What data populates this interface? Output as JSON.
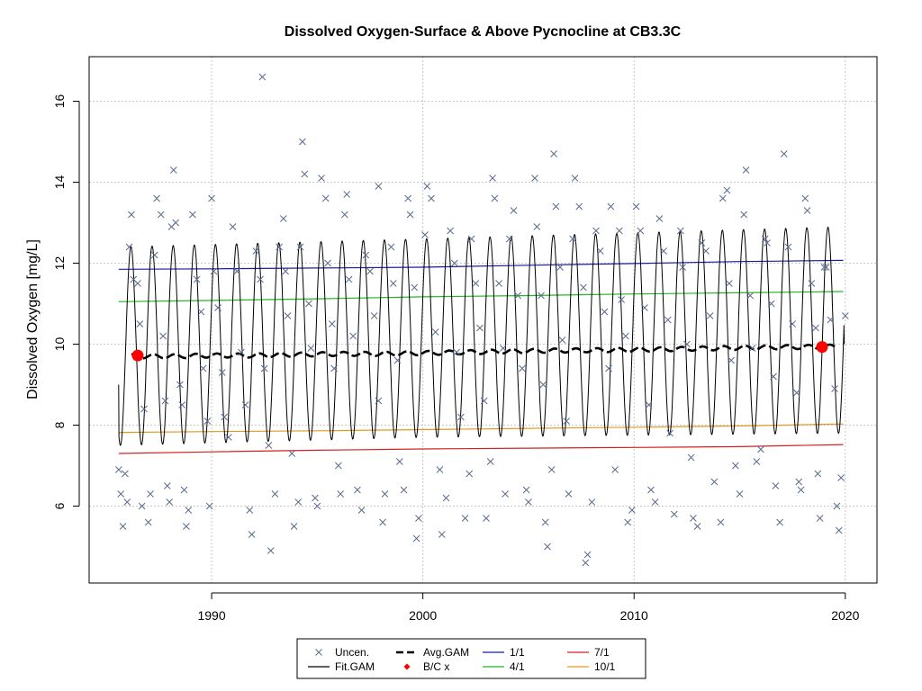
{
  "chart_data": {
    "type": "scatter",
    "title": "Dissolved Oxygen-Surface & Above Pycnocline at CB3.3C",
    "xlabel": "",
    "ylabel": "Dissolved Oxygen [mg/L]",
    "xlim": [
      1984.2,
      2021.5
    ],
    "ylim": [
      4.1,
      17.1
    ],
    "x_ticks": [
      1990,
      2000,
      2010,
      2020
    ],
    "y_ticks": [
      6,
      8,
      10,
      12,
      14,
      16
    ],
    "grid": true,
    "legend_position": "bottom-center",
    "series": [
      {
        "name": "Uncen.",
        "kind": "points",
        "marker": "x",
        "color": "#5a6b8c",
        "points": [
          [
            1985.6,
            6.9
          ],
          [
            1985.7,
            6.3
          ],
          [
            1985.8,
            5.5
          ],
          [
            1985.9,
            6.8
          ],
          [
            1986.0,
            6.1
          ],
          [
            1986.1,
            12.4
          ],
          [
            1986.2,
            13.2
          ],
          [
            1986.3,
            11.6
          ],
          [
            1986.5,
            11.5
          ],
          [
            1986.6,
            10.5
          ],
          [
            1986.7,
            6.0
          ],
          [
            1986.8,
            8.4
          ],
          [
            1987.0,
            5.6
          ],
          [
            1987.1,
            6.3
          ],
          [
            1987.3,
            12.2
          ],
          [
            1987.4,
            13.6
          ],
          [
            1987.6,
            13.2
          ],
          [
            1987.7,
            10.2
          ],
          [
            1987.8,
            8.6
          ],
          [
            1987.9,
            6.5
          ],
          [
            1988.0,
            6.1
          ],
          [
            1988.1,
            12.9
          ],
          [
            1988.2,
            14.3
          ],
          [
            1988.3,
            13.0
          ],
          [
            1988.5,
            9.0
          ],
          [
            1988.6,
            8.5
          ],
          [
            1988.7,
            6.4
          ],
          [
            1988.8,
            5.5
          ],
          [
            1988.9,
            5.9
          ],
          [
            1989.1,
            13.2
          ],
          [
            1989.3,
            11.6
          ],
          [
            1989.5,
            10.8
          ],
          [
            1989.6,
            9.4
          ],
          [
            1989.8,
            8.1
          ],
          [
            1989.9,
            6.0
          ],
          [
            1990.0,
            13.6
          ],
          [
            1990.1,
            11.8
          ],
          [
            1990.3,
            10.9
          ],
          [
            1990.5,
            9.3
          ],
          [
            1990.6,
            8.2
          ],
          [
            1990.8,
            7.7
          ],
          [
            1991.0,
            12.9
          ],
          [
            1991.2,
            11.8
          ],
          [
            1991.4,
            9.8
          ],
          [
            1991.6,
            8.5
          ],
          [
            1991.8,
            5.9
          ],
          [
            1991.9,
            5.3
          ],
          [
            1992.1,
            12.3
          ],
          [
            1992.3,
            11.6
          ],
          [
            1992.4,
            16.6
          ],
          [
            1992.5,
            9.4
          ],
          [
            1992.7,
            7.5
          ],
          [
            1992.8,
            4.9
          ],
          [
            1993.0,
            6.3
          ],
          [
            1993.2,
            12.4
          ],
          [
            1993.4,
            13.1
          ],
          [
            1993.5,
            11.8
          ],
          [
            1993.6,
            10.7
          ],
          [
            1993.8,
            7.3
          ],
          [
            1993.9,
            5.5
          ],
          [
            1994.1,
            6.1
          ],
          [
            1994.2,
            12.4
          ],
          [
            1994.3,
            15.0
          ],
          [
            1994.4,
            14.2
          ],
          [
            1994.6,
            11.0
          ],
          [
            1994.7,
            9.9
          ],
          [
            1994.9,
            6.2
          ],
          [
            1995.0,
            6.0
          ],
          [
            1995.2,
            14.1
          ],
          [
            1995.4,
            13.6
          ],
          [
            1995.5,
            12.0
          ],
          [
            1995.7,
            10.5
          ],
          [
            1995.8,
            9.4
          ],
          [
            1996.0,
            7.0
          ],
          [
            1996.1,
            6.3
          ],
          [
            1996.3,
            13.2
          ],
          [
            1996.4,
            13.7
          ],
          [
            1996.5,
            11.6
          ],
          [
            1996.7,
            10.2
          ],
          [
            1996.9,
            6.4
          ],
          [
            1997.1,
            5.9
          ],
          [
            1997.3,
            12.2
          ],
          [
            1997.5,
            11.8
          ],
          [
            1997.7,
            10.7
          ],
          [
            1997.9,
            8.6
          ],
          [
            1997.9,
            13.9
          ],
          [
            1998.1,
            5.6
          ],
          [
            1998.2,
            6.3
          ],
          [
            1998.5,
            12.4
          ],
          [
            1998.6,
            11.5
          ],
          [
            1998.8,
            9.6
          ],
          [
            1998.9,
            7.1
          ],
          [
            1999.1,
            6.4
          ],
          [
            1999.3,
            13.6
          ],
          [
            1999.4,
            13.2
          ],
          [
            1999.6,
            11.4
          ],
          [
            1999.7,
            5.2
          ],
          [
            1999.8,
            5.7
          ],
          [
            2000.1,
            12.7
          ],
          [
            2000.2,
            13.9
          ],
          [
            2000.4,
            13.6
          ],
          [
            2000.6,
            10.3
          ],
          [
            2000.8,
            6.9
          ],
          [
            2000.9,
            5.3
          ],
          [
            2001.1,
            6.2
          ],
          [
            2001.3,
            12.8
          ],
          [
            2001.5,
            12.0
          ],
          [
            2001.6,
            9.8
          ],
          [
            2001.8,
            8.2
          ],
          [
            2002.0,
            5.7
          ],
          [
            2002.2,
            6.8
          ],
          [
            2002.3,
            12.6
          ],
          [
            2002.5,
            11.5
          ],
          [
            2002.7,
            10.4
          ],
          [
            2002.9,
            8.6
          ],
          [
            2003.0,
            5.7
          ],
          [
            2003.2,
            7.1
          ],
          [
            2003.3,
            14.1
          ],
          [
            2003.4,
            13.6
          ],
          [
            2003.6,
            11.5
          ],
          [
            2003.8,
            9.9
          ],
          [
            2003.9,
            6.3
          ],
          [
            2004.1,
            12.6
          ],
          [
            2004.3,
            13.3
          ],
          [
            2004.5,
            11.2
          ],
          [
            2004.7,
            9.4
          ],
          [
            2004.9,
            6.4
          ],
          [
            2005.0,
            6.1
          ],
          [
            2005.3,
            14.1
          ],
          [
            2005.4,
            12.9
          ],
          [
            2005.6,
            11.2
          ],
          [
            2005.7,
            9.0
          ],
          [
            2005.8,
            5.6
          ],
          [
            2005.9,
            5.0
          ],
          [
            2006.1,
            6.9
          ],
          [
            2006.2,
            14.7
          ],
          [
            2006.3,
            13.4
          ],
          [
            2006.5,
            11.9
          ],
          [
            2006.6,
            10.1
          ],
          [
            2006.8,
            8.1
          ],
          [
            2006.9,
            6.3
          ],
          [
            2007.1,
            12.6
          ],
          [
            2007.2,
            14.1
          ],
          [
            2007.4,
            13.4
          ],
          [
            2007.6,
            11.4
          ],
          [
            2007.7,
            4.6
          ],
          [
            2007.8,
            4.8
          ],
          [
            2008.0,
            6.1
          ],
          [
            2008.2,
            12.8
          ],
          [
            2008.4,
            12.3
          ],
          [
            2008.6,
            10.8
          ],
          [
            2008.8,
            9.4
          ],
          [
            2008.9,
            13.4
          ],
          [
            2009.1,
            6.9
          ],
          [
            2009.3,
            12.8
          ],
          [
            2009.4,
            11.1
          ],
          [
            2009.6,
            10.2
          ],
          [
            2009.7,
            5.6
          ],
          [
            2009.9,
            5.9
          ],
          [
            2010.1,
            13.4
          ],
          [
            2010.3,
            12.8
          ],
          [
            2010.5,
            10.9
          ],
          [
            2010.7,
            8.5
          ],
          [
            2010.8,
            6.4
          ],
          [
            2011.0,
            6.1
          ],
          [
            2011.2,
            13.1
          ],
          [
            2011.4,
            12.3
          ],
          [
            2011.6,
            10.6
          ],
          [
            2011.7,
            7.8
          ],
          [
            2011.9,
            5.8
          ],
          [
            2012.2,
            12.8
          ],
          [
            2012.3,
            11.9
          ],
          [
            2012.5,
            10.0
          ],
          [
            2012.7,
            7.2
          ],
          [
            2012.8,
            5.7
          ],
          [
            2013.0,
            5.5
          ],
          [
            2013.2,
            12.5
          ],
          [
            2013.4,
            12.3
          ],
          [
            2013.6,
            10.7
          ],
          [
            2013.8,
            6.6
          ],
          [
            2014.1,
            5.6
          ],
          [
            2014.2,
            13.6
          ],
          [
            2014.4,
            13.8
          ],
          [
            2014.5,
            11.5
          ],
          [
            2014.6,
            9.6
          ],
          [
            2014.8,
            7.0
          ],
          [
            2015.0,
            6.3
          ],
          [
            2015.2,
            13.2
          ],
          [
            2015.3,
            14.3
          ],
          [
            2015.5,
            11.2
          ],
          [
            2015.6,
            9.9
          ],
          [
            2015.8,
            7.1
          ],
          [
            2016.0,
            7.4
          ],
          [
            2016.2,
            12.6
          ],
          [
            2016.3,
            12.5
          ],
          [
            2016.5,
            11.0
          ],
          [
            2016.6,
            9.2
          ],
          [
            2016.7,
            6.5
          ],
          [
            2016.9,
            5.6
          ],
          [
            2017.1,
            14.7
          ],
          [
            2017.3,
            12.4
          ],
          [
            2017.5,
            10.5
          ],
          [
            2017.7,
            8.8
          ],
          [
            2017.8,
            6.6
          ],
          [
            2017.9,
            6.4
          ],
          [
            2018.1,
            13.6
          ],
          [
            2018.2,
            13.3
          ],
          [
            2018.4,
            11.5
          ],
          [
            2018.6,
            10.4
          ],
          [
            2018.7,
            6.8
          ],
          [
            2018.8,
            5.7
          ],
          [
            2019.0,
            11.9
          ],
          [
            2019.1,
            11.9
          ],
          [
            2019.3,
            10.6
          ],
          [
            2019.5,
            8.9
          ],
          [
            2019.6,
            6.0
          ],
          [
            2019.7,
            5.4
          ],
          [
            2019.8,
            6.7
          ],
          [
            2020.0,
            10.7
          ]
        ]
      },
      {
        "name": "Fit.GAM",
        "kind": "seasonal_line",
        "color": "#000000",
        "x_start": 1985.6,
        "x_end": 2019.95,
        "peak_fraction": 0.18,
        "peak": [
          [
            1985.6,
            12.4
          ],
          [
            2000,
            12.6
          ],
          [
            2019.9,
            12.9
          ]
        ],
        "trough": [
          [
            1985.6,
            7.5
          ],
          [
            2000,
            7.7
          ],
          [
            2019.9,
            7.8
          ]
        ],
        "start_value": 9.0,
        "end_value": 10.0
      },
      {
        "name": "Avg.GAM",
        "kind": "dashed_line",
        "color": "#000000",
        "points": [
          [
            1986.2,
            9.7
          ],
          [
            1988,
            9.7
          ],
          [
            1990,
            9.72
          ],
          [
            1992,
            9.72
          ],
          [
            1994,
            9.74
          ],
          [
            1996,
            9.76
          ],
          [
            1998,
            9.76
          ],
          [
            2000,
            9.78
          ],
          [
            2002,
            9.8
          ],
          [
            2004,
            9.82
          ],
          [
            2006,
            9.84
          ],
          [
            2008,
            9.85
          ],
          [
            2010,
            9.86
          ],
          [
            2012,
            9.88
          ],
          [
            2014,
            9.9
          ],
          [
            2016,
            9.92
          ],
          [
            2018,
            9.93
          ],
          [
            2019.5,
            9.94
          ]
        ],
        "wiggle": 0.05
      },
      {
        "name": "B/C x",
        "kind": "markers",
        "color": "#ff0000",
        "points": [
          [
            1986.5,
            9.72
          ],
          [
            2018.9,
            9.93
          ]
        ]
      },
      {
        "name": "1/1",
        "kind": "line",
        "color": "#1a1aa6",
        "points": [
          [
            1985.6,
            11.85
          ],
          [
            1990,
            11.86
          ],
          [
            1995,
            11.88
          ],
          [
            2000,
            11.9
          ],
          [
            2005,
            11.95
          ],
          [
            2010,
            11.99
          ],
          [
            2015,
            12.04
          ],
          [
            2019.9,
            12.07
          ]
        ]
      },
      {
        "name": "4/1",
        "kind": "line",
        "color": "#22b822",
        "points": [
          [
            1985.6,
            11.05
          ],
          [
            1990,
            11.08
          ],
          [
            1995,
            11.12
          ],
          [
            2000,
            11.17
          ],
          [
            2005,
            11.2
          ],
          [
            2010,
            11.24
          ],
          [
            2015,
            11.27
          ],
          [
            2019.9,
            11.3
          ]
        ]
      },
      {
        "name": "7/1",
        "kind": "line",
        "color": "#d62020",
        "points": [
          [
            1985.6,
            7.3
          ],
          [
            1990,
            7.34
          ],
          [
            1995,
            7.38
          ],
          [
            2000,
            7.41
          ],
          [
            2005,
            7.43
          ],
          [
            2010,
            7.45
          ],
          [
            2015,
            7.47
          ],
          [
            2019.9,
            7.52
          ]
        ]
      },
      {
        "name": "10/1",
        "kind": "line",
        "color": "#e39a22",
        "points": [
          [
            1985.6,
            7.82
          ],
          [
            1990,
            7.84
          ],
          [
            1995,
            7.86
          ],
          [
            2000,
            7.89
          ],
          [
            2005,
            7.92
          ],
          [
            2010,
            7.95
          ],
          [
            2015,
            7.98
          ],
          [
            2019.9,
            8.03
          ]
        ]
      }
    ],
    "legend": {
      "columns": [
        [
          {
            "label": "Uncen.",
            "symbol": "x",
            "color": "#5a6b8c"
          },
          {
            "label": "Fit.GAM",
            "symbol": "line",
            "color": "#000000"
          }
        ],
        [
          {
            "label": "Avg.GAM",
            "symbol": "dash",
            "color": "#000000"
          },
          {
            "label": "B/C x",
            "symbol": "diamond",
            "color": "#ff0000"
          }
        ],
        [
          {
            "label": "1/1",
            "symbol": "line",
            "color": "#1a1aa6"
          },
          {
            "label": "4/1",
            "symbol": "line",
            "color": "#22b822"
          }
        ],
        [
          {
            "label": "7/1",
            "symbol": "line",
            "color": "#d62020"
          },
          {
            "label": "10/1",
            "symbol": "line",
            "color": "#e39a22"
          }
        ]
      ]
    }
  }
}
